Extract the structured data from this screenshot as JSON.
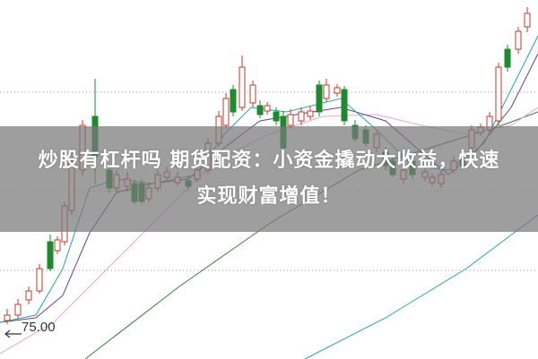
{
  "chart": {
    "price_label": "75.00",
    "colors": {
      "up": "#c0392b",
      "down": "#1e8a2e",
      "ma_teal": "#2aa3a3",
      "ma_purple": "#6b3f8f",
      "ma_pink": "#e2a6e6",
      "ma_green": "#3a7d3a",
      "grid": "#999999"
    }
  },
  "banner": {
    "line1": "炒股有杠杆吗 期货配资：小资金撬动大收益，快速",
    "line2": "实现财富增值！"
  }
}
